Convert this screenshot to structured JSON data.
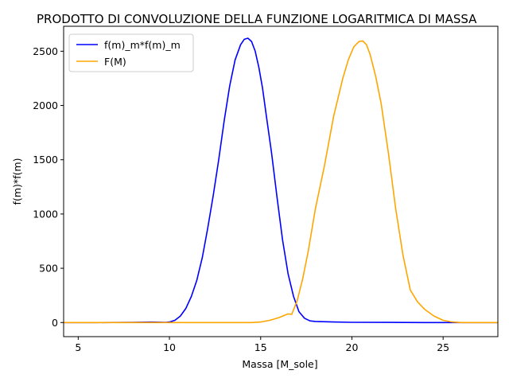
{
  "chart_data": {
    "type": "line",
    "title": "PRODOTTO DI CONVOLUZIONE DELLA FUNZIONE LOGARITMICA DI MASSA",
    "xlabel": "Massa [M_sole]",
    "ylabel": "f(m)*f(m)",
    "xlim": [
      4.2,
      28.0
    ],
    "ylim": [
      -130,
      2730
    ],
    "xticks": [
      5,
      10,
      15,
      20,
      25
    ],
    "yticks": [
      0,
      500,
      1000,
      1500,
      2000,
      2500
    ],
    "grid": false,
    "legend_position": "upper-left",
    "series": [
      {
        "name": "f(m)_m*f(m)_m",
        "color": "#0000ff",
        "x": [
          4.2,
          6.0,
          8.0,
          9.0,
          9.8,
          10.0,
          10.3,
          10.6,
          10.9,
          11.2,
          11.5,
          11.8,
          12.1,
          12.4,
          12.7,
          13.0,
          13.3,
          13.6,
          13.9,
          14.1,
          14.3,
          14.5,
          14.7,
          14.9,
          15.1,
          15.3,
          15.6,
          15.9,
          16.2,
          16.5,
          16.8,
          17.1,
          17.4,
          17.7,
          18.0,
          19.0,
          20.0,
          22.0,
          24.0,
          26.0,
          28.0
        ],
        "y": [
          0,
          0,
          2,
          4,
          2,
          5,
          20,
          60,
          130,
          240,
          390,
          600,
          870,
          1170,
          1500,
          1860,
          2180,
          2420,
          2560,
          2610,
          2620,
          2590,
          2500,
          2350,
          2160,
          1920,
          1560,
          1150,
          760,
          450,
          240,
          100,
          40,
          15,
          10,
          5,
          2,
          1,
          0,
          0,
          0
        ]
      },
      {
        "name": "F(M)",
        "color": "#ffa500",
        "x": [
          4.2,
          8.0,
          12.0,
          14.5,
          15.0,
          15.5,
          16.0,
          16.5,
          16.7,
          17.0,
          17.3,
          17.6,
          18.0,
          18.5,
          19.0,
          19.5,
          19.8,
          20.1,
          20.4,
          20.6,
          20.8,
          21.0,
          21.3,
          21.6,
          22.0,
          22.4,
          22.8,
          23.2,
          23.6,
          24.0,
          24.5,
          25.0,
          25.5,
          26.0,
          27.0,
          28.0
        ],
        "y": [
          0,
          0,
          0,
          0,
          5,
          20,
          45,
          80,
          75,
          200,
          400,
          650,
          1050,
          1450,
          1900,
          2250,
          2420,
          2540,
          2590,
          2595,
          2560,
          2470,
          2270,
          2020,
          1560,
          1050,
          620,
          300,
          190,
          120,
          60,
          20,
          5,
          0,
          0,
          0
        ]
      }
    ]
  }
}
